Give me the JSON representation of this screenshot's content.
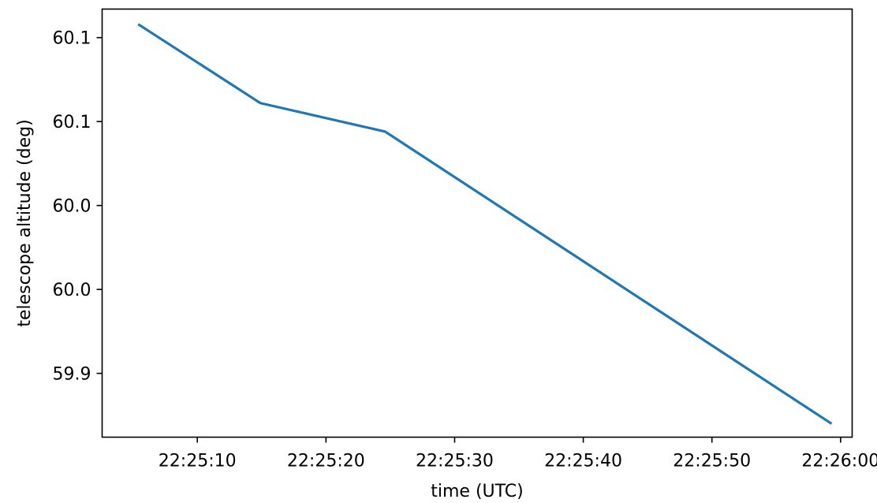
{
  "chart_data": {
    "type": "line",
    "title": "",
    "xlabel": "time (UTC)",
    "ylabel": "telescope altitude (deg)",
    "x_tick_labels": [
      "22:25:10",
      "22:25:20",
      "22:25:30",
      "22:25:40",
      "22:25:50",
      "22:26:00"
    ],
    "x_tick_values": [
      "22:25:10",
      "22:25:20",
      "22:25:30",
      "22:25:40",
      "22:25:50",
      "22:26:00"
    ],
    "xlim": [
      "22:25:02.6",
      "22:26:00.9"
    ],
    "y_tick_labels": [
      "59.9",
      "60.0",
      "60.0",
      "60.1",
      "60.1"
    ],
    "y_tick_values": [
      59.9,
      59.95,
      60.0,
      60.05,
      60.1
    ],
    "ylim": [
      59.862,
      60.117
    ],
    "grid": false,
    "legend": false,
    "series": [
      {
        "color": "#1f77b4",
        "x": [
          "22:25:05.4",
          "22:25:14.9",
          "22:25:24.6",
          "22:25:59.3"
        ],
        "y": [
          60.108,
          60.061,
          60.044,
          59.87
        ]
      }
    ]
  }
}
